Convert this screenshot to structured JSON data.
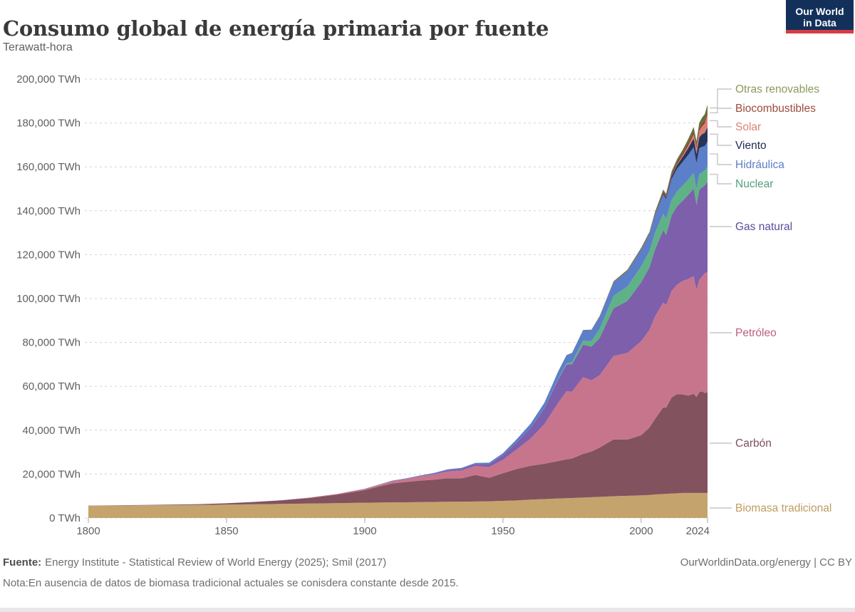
{
  "header": {
    "title": "Consumo global de energía primaria por fuente",
    "subtitle": "Terawatt-hora"
  },
  "logo": {
    "line1": "Our World",
    "line2": "in Data",
    "bg_color": "#12305a",
    "strip_color": "#d73c44"
  },
  "chart_data": {
    "type": "area",
    "stacking": "stacked",
    "title": "Consumo global de energía primaria por fuente",
    "ylabel": "Terawatt-hora",
    "xlabel": "",
    "ylim": [
      0,
      200000
    ],
    "grid": "dashed-horizontal",
    "legend_position": "right",
    "x": [
      1800,
      1810,
      1820,
      1830,
      1840,
      1850,
      1860,
      1870,
      1880,
      1890,
      1900,
      1905,
      1910,
      1915,
      1920,
      1925,
      1930,
      1935,
      1940,
      1945,
      1950,
      1955,
      1960,
      1965,
      1970,
      1973,
      1975,
      1979,
      1982,
      1985,
      1990,
      1995,
      2000,
      2003,
      2005,
      2008,
      2009,
      2011,
      2013,
      2015,
      2017,
      2019,
      2020,
      2021,
      2022,
      2023,
      2024
    ],
    "x_ticks": [
      {
        "value": 1800,
        "label": "1800"
      },
      {
        "value": 1850,
        "label": "1850"
      },
      {
        "value": 1900,
        "label": "1900"
      },
      {
        "value": 1950,
        "label": "1950"
      },
      {
        "value": 2000,
        "label": "2000"
      },
      {
        "value": 2024,
        "label": "2024"
      }
    ],
    "y_ticks": [
      {
        "value": 0,
        "label": "0 TWh"
      },
      {
        "value": 20000,
        "label": "20,000 TWh"
      },
      {
        "value": 40000,
        "label": "40,000 TWh"
      },
      {
        "value": 60000,
        "label": "60,000 TWh"
      },
      {
        "value": 80000,
        "label": "80,000 TWh"
      },
      {
        "value": 100000,
        "label": "100,000 TWh"
      },
      {
        "value": 120000,
        "label": "120,000 TWh"
      },
      {
        "value": 140000,
        "label": "140,000 TWh"
      },
      {
        "value": 160000,
        "label": "160,000 TWh"
      },
      {
        "value": 180000,
        "label": "180,000 TWh"
      },
      {
        "value": 200000,
        "label": "200,000 TWh"
      }
    ],
    "series": [
      {
        "key": "biomasa_tradicional",
        "name": "Biomasa tradicional",
        "color": "#c5a36d",
        "label_color": "#bf9c61",
        "values": [
          5556,
          5650,
          5750,
          5850,
          5950,
          6111,
          6250,
          6400,
          6550,
          6750,
          6944,
          7000,
          7100,
          7150,
          7222,
          7300,
          7400,
          7450,
          7500,
          7600,
          7778,
          8000,
          8333,
          8600,
          8889,
          9000,
          9100,
          9300,
          9450,
          9600,
          9900,
          10100,
          10300,
          10500,
          10700,
          10900,
          11000,
          11100,
          11250,
          11389,
          11389,
          11389,
          11389,
          11389,
          11389,
          11389,
          11389
        ]
      },
      {
        "key": "carbon",
        "name": "Carbón",
        "color": "#82525e",
        "label_color": "#7d4f5c",
        "values": [
          97,
          128,
          153,
          264,
          356,
          569,
          1061,
          1642,
          2542,
          3856,
          5728,
          7300,
          8656,
          9250,
          9800,
          10100,
          10700,
          10600,
          12100,
          10700,
          12603,
          14300,
          15442,
          16100,
          17067,
          17700,
          18000,
          19900,
          20800,
          22500,
          25905,
          25600,
          27385,
          30700,
          34397,
          39500,
          39200,
          43800,
          45200,
          44900,
          44400,
          45200,
          43700,
          45900,
          46300,
          45565,
          45900
        ]
      },
      {
        "key": "petroleo",
        "name": "Petróleo",
        "color": "#c7758d",
        "label_color": "#bc5f7e",
        "values": [
          0,
          0,
          0,
          0,
          0,
          2,
          6,
          64,
          177,
          325,
          532,
          700,
          1000,
          1300,
          1900,
          2450,
          3100,
          3600,
          4100,
          4900,
          6100,
          9000,
          12415,
          18100,
          26600,
          31000,
          30500,
          35000,
          32500,
          33000,
          38000,
          39500,
          42881,
          44500,
          46700,
          47800,
          46800,
          48500,
          49900,
          51700,
          53100,
          53619,
          48712,
          51170,
          52333,
          54564,
          54800
        ]
      },
      {
        "key": "gas_natural",
        "name": "Gas natural",
        "color": "#7d5fab",
        "label_color": "#5d4a9c",
        "values": [
          0,
          0,
          0,
          0,
          0,
          0,
          0,
          1,
          7,
          30,
          74,
          100,
          150,
          200,
          250,
          350,
          600,
          750,
          870,
          1300,
          2092,
          3200,
          4800,
          7100,
          10700,
          12200,
          12500,
          14800,
          15300,
          17000,
          21700,
          23700,
          26800,
          28500,
          30500,
          33000,
          32000,
          34500,
          35700,
          36600,
          38300,
          39900,
          39000,
          41000,
          40500,
          40102,
          41000
        ]
      },
      {
        "key": "nuclear",
        "name": "Nuclear",
        "color": "#5fb286",
        "label_color": "#539e7e",
        "values": [
          0,
          0,
          0,
          0,
          0,
          0,
          0,
          0,
          0,
          0,
          0,
          0,
          0,
          0,
          0,
          0,
          0,
          0,
          0,
          0,
          0,
          0,
          20,
          72,
          224,
          550,
          1000,
          1800,
          2500,
          4200,
          5676,
          6600,
          7323,
          7350,
          7608,
          7500,
          7300,
          7022,
          6700,
          6838,
          7000,
          7200,
          6900,
          7200,
          6900,
          6824,
          7000
        ]
      },
      {
        "key": "hidraulica",
        "name": "Hidráulica",
        "color": "#5b7fc9",
        "label_color": "#5d7ec6",
        "values": [
          0,
          0,
          0,
          0,
          0,
          0,
          0,
          0,
          3,
          15,
          47,
          80,
          130,
          160,
          190,
          280,
          380,
          440,
          500,
          700,
          926,
          1400,
          1900,
          2500,
          3300,
          3650,
          4000,
          4700,
          5000,
          5400,
          6120,
          6900,
          7470,
          7600,
          8100,
          8800,
          8900,
          9600,
          10400,
          10800,
          11200,
          11700,
          11900,
          11800,
          11700,
          11014,
          11600
        ]
      },
      {
        "key": "viento",
        "name": "Viento",
        "color": "#263558",
        "label_color": "#1c2a50",
        "values": [
          0,
          0,
          0,
          0,
          0,
          0,
          0,
          0,
          0,
          0,
          0,
          0,
          0,
          0,
          0,
          0,
          0,
          0,
          0,
          0,
          0,
          0,
          0,
          0,
          0,
          0,
          0,
          0,
          0,
          1,
          10,
          22,
          87,
          180,
          290,
          600,
          750,
          1200,
          1700,
          2300,
          3100,
          3900,
          4400,
          5000,
          5700,
          6040,
          6400
        ]
      },
      {
        "key": "solar",
        "name": "Solar",
        "color": "#dd7e72",
        "label_color": "#df8276",
        "values": [
          0,
          0,
          0,
          0,
          0,
          0,
          0,
          0,
          0,
          0,
          0,
          0,
          0,
          0,
          0,
          0,
          0,
          0,
          0,
          0,
          0,
          0,
          0,
          0,
          0,
          0,
          0,
          0,
          0,
          0,
          0,
          1,
          3,
          6,
          12,
          35,
          55,
          170,
          370,
          700,
          1200,
          1900,
          2300,
          2900,
          3600,
          4264,
          5900
        ]
      },
      {
        "key": "biocombustibles",
        "name": "Biocombustibles",
        "color": "#8d3c2d",
        "label_color": "#9b4b3b",
        "values": [
          0,
          0,
          0,
          0,
          0,
          0,
          0,
          0,
          0,
          0,
          0,
          0,
          0,
          0,
          0,
          0,
          0,
          0,
          0,
          0,
          0,
          0,
          0,
          0,
          0,
          0,
          0,
          0,
          50,
          80,
          120,
          170,
          260,
          350,
          430,
          700,
          800,
          950,
          1050,
          1100,
          1150,
          1250,
          1100,
          1200,
          1250,
          1300,
          1320
        ]
      },
      {
        "key": "otras_renovables",
        "name": "Otras renovables",
        "color": "#62713d",
        "label_color": "#8b9a5d",
        "values": [
          0,
          0,
          0,
          0,
          0,
          0,
          0,
          0,
          0,
          0,
          0,
          0,
          0,
          0,
          0,
          0,
          0,
          0,
          0,
          0,
          0,
          0,
          40,
          60,
          90,
          110,
          130,
          170,
          220,
          300,
          400,
          480,
          560,
          650,
          720,
          850,
          900,
          1050,
          1250,
          1450,
          1750,
          2100,
          2250,
          2450,
          2700,
          2900,
          3100
        ]
      }
    ]
  },
  "footer": {
    "source_label": "Fuente:",
    "source_text": "Energy Institute - Statistical Review of World Energy (2025); Smil (2017)",
    "note_label": "Nota:",
    "note_text": "En ausencia de datos de biomasa tradicional actuales se conisdera constante desde 2015.",
    "credit": "OurWorldinData.org/energy | CC BY"
  }
}
